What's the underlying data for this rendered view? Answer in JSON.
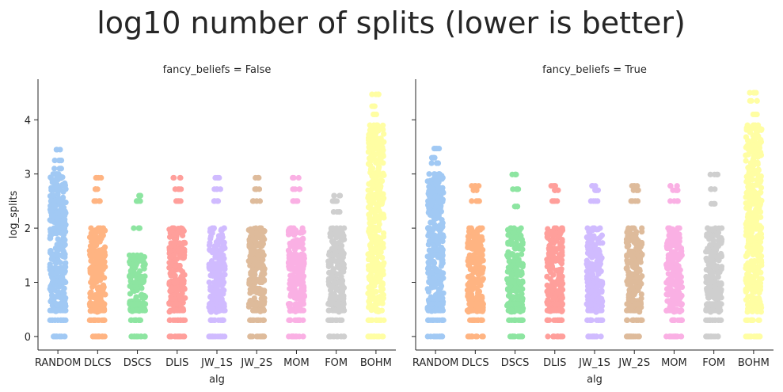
{
  "figure": {
    "suptitle": "log10 number of splits (lower is better)"
  },
  "chart_data": {
    "type": "scatter",
    "subtype": "strip",
    "categories": [
      "RANDOM",
      "DLCS",
      "DSCS",
      "DLIS",
      "JW_1S",
      "JW_2S",
      "MOM",
      "FOM",
      "BOHM"
    ],
    "colors": [
      "#a1c9f4",
      "#ffb482",
      "#8de5a1",
      "#ff9f9b",
      "#d0bbff",
      "#debb9b",
      "#fab0e4",
      "#cfcfcf",
      "#fffea3"
    ],
    "xlabel": "alg",
    "ylabel": "log_splits",
    "ylim": [
      -0.25,
      4.75
    ],
    "yticks": [
      0,
      1,
      2,
      3,
      4
    ],
    "grid": false,
    "legend": "none",
    "facets": [
      {
        "title": "fancy_beliefs = False",
        "series": [
          {
            "values": [
              0,
              0.3,
              0.48,
              0.6,
              1.0,
              1.5,
              2.0,
              2.5,
              2.7,
              3.0,
              3.1,
              3.25,
              3.45
            ]
          },
          {
            "values": [
              0,
              0.3,
              0.48,
              0.6,
              1.0,
              1.5,
              2.0,
              2.5,
              2.72,
              2.93
            ]
          },
          {
            "values": [
              0,
              0.3,
              0.48,
              0.6,
              1.0,
              1.5,
              2.0,
              2.5,
              2.6
            ]
          },
          {
            "values": [
              0,
              0.3,
              0.48,
              0.6,
              1.0,
              1.5,
              2.0,
              2.5,
              2.72,
              2.93
            ]
          },
          {
            "values": [
              0,
              0.3,
              0.48,
              0.6,
              1.0,
              1.5,
              2.0,
              2.5,
              2.72,
              2.93
            ]
          },
          {
            "values": [
              0,
              0.3,
              0.48,
              0.6,
              1.0,
              1.5,
              2.0,
              2.5,
              2.72,
              2.93
            ]
          },
          {
            "values": [
              0,
              0.3,
              0.48,
              0.6,
              1.0,
              1.5,
              2.0,
              2.5,
              2.72,
              2.93
            ]
          },
          {
            "values": [
              0,
              0.3,
              0.48,
              0.6,
              1.0,
              1.5,
              2.0,
              2.3,
              2.5,
              2.6
            ]
          },
          {
            "values": [
              0,
              0.3,
              1.0,
              2.0,
              3.0,
              3.5,
              3.9,
              4.1,
              4.25,
              4.47
            ]
          }
        ]
      },
      {
        "title": "fancy_beliefs = True",
        "series": [
          {
            "values": [
              0,
              0.3,
              0.48,
              0.6,
              1.0,
              1.5,
              2.0,
              2.5,
              3.0,
              3.2,
              3.3,
              3.47
            ]
          },
          {
            "values": [
              0,
              0.3,
              0.48,
              0.6,
              1.0,
              1.5,
              2.0,
              2.5,
              2.7,
              2.78
            ]
          },
          {
            "values": [
              0,
              0.3,
              0.48,
              0.6,
              1.0,
              1.5,
              2.0,
              2.4,
              2.72,
              2.99
            ]
          },
          {
            "values": [
              0,
              0.3,
              0.48,
              0.6,
              1.0,
              1.5,
              2.0,
              2.5,
              2.7,
              2.78
            ]
          },
          {
            "values": [
              0,
              0.3,
              0.48,
              0.6,
              1.0,
              1.5,
              2.0,
              2.5,
              2.7,
              2.78
            ]
          },
          {
            "values": [
              0,
              0.3,
              0.48,
              0.6,
              1.0,
              1.5,
              2.0,
              2.5,
              2.7,
              2.78
            ]
          },
          {
            "values": [
              0,
              0.3,
              0.48,
              0.6,
              1.0,
              1.5,
              2.0,
              2.5,
              2.7,
              2.78
            ]
          },
          {
            "values": [
              0,
              0.3,
              0.48,
              0.6,
              1.0,
              1.5,
              2.0,
              2.45,
              2.72,
              2.99
            ]
          },
          {
            "values": [
              0,
              0.3,
              1.0,
              2.0,
              3.0,
              3.5,
              3.9,
              4.1,
              4.35,
              4.5
            ]
          }
        ]
      }
    ]
  }
}
